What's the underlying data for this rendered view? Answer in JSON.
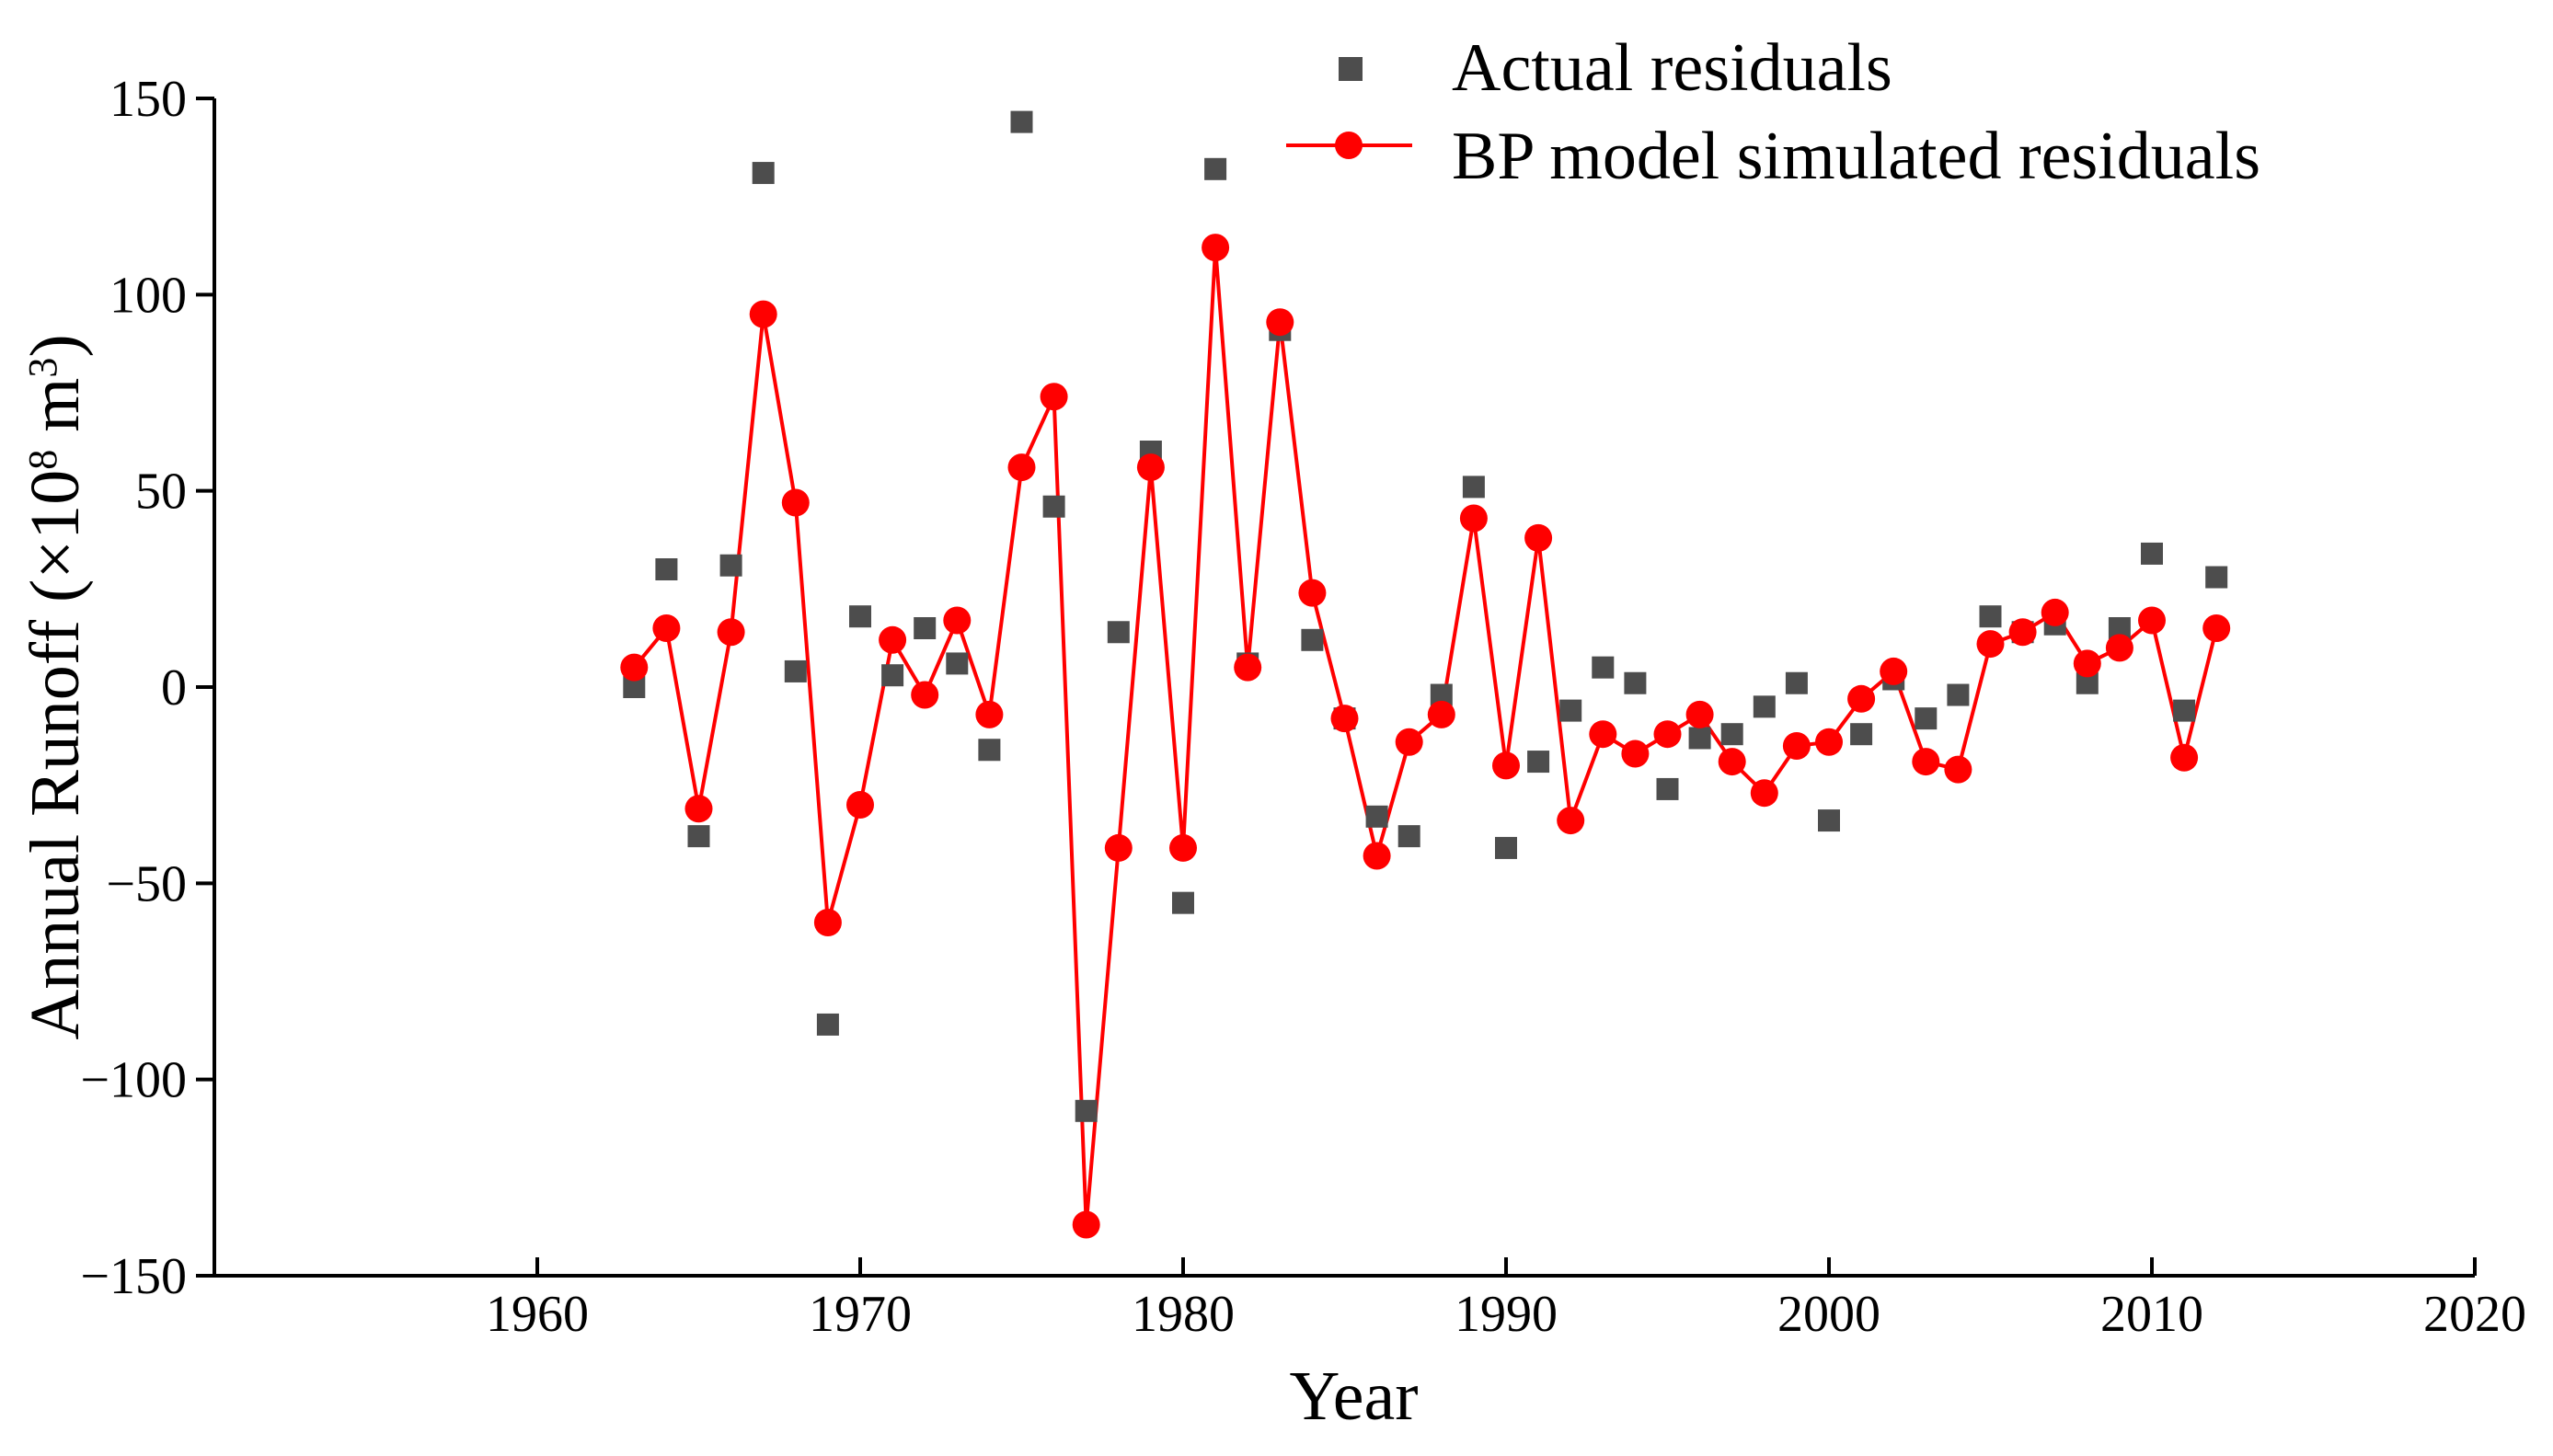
{
  "chart_data": {
    "type": "scatter+line",
    "title": "",
    "xlabel": "Year",
    "ylabel": "Annual Runoff (×10",
    "ylabel_sup": "8",
    "ylabel_unit": " m",
    "ylabel_unit_sup": "3",
    "ylabel_close": ")",
    "xlim": [
      1950,
      2020
    ],
    "ylim": [
      -150,
      150
    ],
    "x_ticks": [
      1960,
      1970,
      1980,
      1990,
      2000,
      2010,
      2020
    ],
    "y_ticks": [
      150,
      100,
      50,
      0,
      -50,
      -100,
      -150
    ],
    "x_tick_labels": [
      "1960",
      "1970",
      "1980",
      "1990",
      "2000",
      "2010",
      "2020"
    ],
    "y_tick_labels": [
      "150",
      "100",
      "50",
      "0",
      "−50",
      "−100",
      "−150"
    ],
    "legend_position": "top-right",
    "colors": {
      "actual": "#4d4d4d",
      "simulated": "#ff0000"
    },
    "series": [
      {
        "name": "Actual residuals",
        "style": "square-markers",
        "x": [
          1963,
          1964,
          1965,
          1966,
          1967,
          1968,
          1969,
          1970,
          1971,
          1972,
          1973,
          1974,
          1975,
          1976,
          1977,
          1978,
          1979,
          1980,
          1981,
          1982,
          1983,
          1984,
          1985,
          1986,
          1987,
          1988,
          1989,
          1990,
          1991,
          1992,
          1993,
          1994,
          1995,
          1996,
          1997,
          1998,
          1999,
          2000,
          2001,
          2002,
          2003,
          2004,
          2005,
          2006,
          2007,
          2008,
          2009,
          2010,
          2011,
          2012
        ],
        "values": [
          0,
          30,
          -38,
          31,
          131,
          4,
          -86,
          18,
          3,
          15,
          6,
          -16,
          144,
          46,
          -108,
          14,
          60,
          -55,
          132,
          6,
          91,
          12,
          -8,
          -33,
          -38,
          -2,
          51,
          -41,
          -19,
          -6,
          5,
          1,
          -26,
          -13,
          -12,
          -5,
          1,
          -34,
          -12,
          2,
          -8,
          -2,
          18,
          14,
          16,
          1,
          15,
          34,
          -6,
          28
        ]
      },
      {
        "name": "BP model simulated residuals",
        "style": "line-with-circles",
        "x": [
          1963,
          1964,
          1965,
          1966,
          1967,
          1968,
          1969,
          1970,
          1971,
          1972,
          1973,
          1974,
          1975,
          1976,
          1977,
          1978,
          1979,
          1980,
          1981,
          1982,
          1983,
          1984,
          1985,
          1986,
          1987,
          1988,
          1989,
          1990,
          1991,
          1992,
          1993,
          1994,
          1995,
          1996,
          1997,
          1998,
          1999,
          2000,
          2001,
          2002,
          2003,
          2004,
          2005,
          2006,
          2007,
          2008,
          2009,
          2010,
          2011,
          2012
        ],
        "values": [
          5,
          15,
          -31,
          14,
          95,
          47,
          -60,
          -30,
          12,
          -2,
          17,
          -7,
          56,
          74,
          -137,
          -41,
          56,
          -41,
          112,
          5,
          93,
          24,
          -8,
          -43,
          -14,
          -7,
          43,
          -20,
          38,
          -34,
          -12,
          -17,
          -12,
          -7,
          -19,
          -27,
          -15,
          -14,
          -3,
          4,
          -19,
          -21,
          11,
          14,
          19,
          6,
          10,
          17,
          -18,
          15
        ]
      }
    ]
  }
}
